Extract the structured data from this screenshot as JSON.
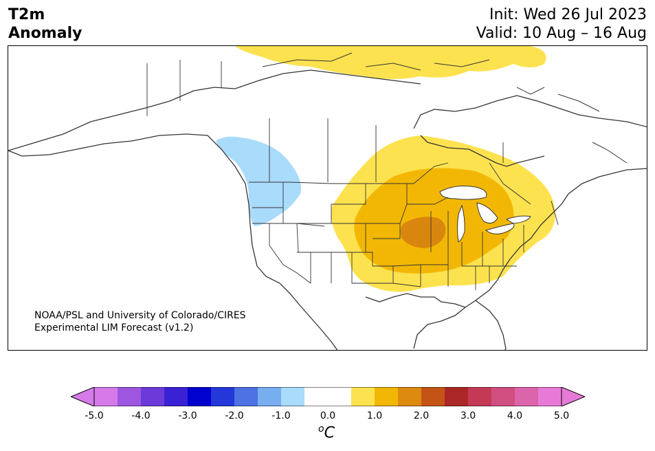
{
  "header": {
    "title_line1": "T2m",
    "title_line2": "Anomaly",
    "init": "Init: Wed 26 Jul 2023",
    "valid": "Valid: 10 Aug – 16 Aug"
  },
  "map": {
    "credit_line1": "NOAA/PSL and University of Colorado/CIRES",
    "credit_line2": "Experimental LIM Forecast (v1.2)",
    "colors": {
      "cool_light": "#a9dbfb",
      "warm_1": "#fde24f",
      "warm_2": "#f2b705",
      "warm_3": "#d9860f",
      "coastline": "#333333",
      "state_lines": "#333333"
    },
    "features": [
      {
        "name": "Pacific Northwest cool anomaly",
        "bin": "-1.0 to -0.5"
      },
      {
        "name": "Central US warm anomaly",
        "bin": "0.5 to 2.0"
      },
      {
        "name": "Arctic islands warm anomaly",
        "bin": "0.5 to 1.0"
      }
    ]
  },
  "colorbar": {
    "unit_base": "C",
    "unit_prefix": "o",
    "tick_labels": [
      "-5.0",
      "-4.0",
      "-3.0",
      "-2.0",
      "-1.0",
      "0.0",
      "1.0",
      "2.0",
      "3.0",
      "4.0",
      "5.0"
    ],
    "colors": [
      "#d57ae8",
      "#9e55e0",
      "#6b3ad9",
      "#3a22d4",
      "#0000cf",
      "#2438d9",
      "#4c72e4",
      "#76aef0",
      "#a9dbfb",
      "#ffffff",
      "#ffffff",
      "#fde24f",
      "#f2b705",
      "#dd8a10",
      "#c45316",
      "#ab2727",
      "#c43a56",
      "#d14e80",
      "#dc64aa",
      "#e77ad6"
    ],
    "extend_low_color": "#d57ae8",
    "extend_high_color": "#e77ad6"
  }
}
